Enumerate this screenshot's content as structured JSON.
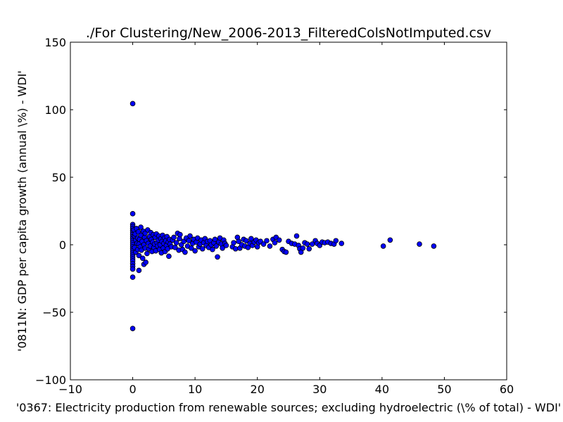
{
  "chart_data": {
    "type": "scatter",
    "title": "./For Clustering/New_2006-2013_FilteredColsNotImputed.csv",
    "xlabel": "'0367: Electricity production from renewable sources; excluding hydroelectric  (\\% of total) - WDI'",
    "ylabel": "'0811N: GDP per capita growth  (annual \\%) - WDI'",
    "xlim": [
      -10,
      60
    ],
    "ylim": [
      -100,
      150
    ],
    "xticks": [
      -10,
      0,
      10,
      20,
      30,
      40,
      50,
      60
    ],
    "yticks": [
      -100,
      -50,
      0,
      50,
      100,
      150
    ],
    "xtick_labels": [
      "−10",
      "0",
      "10",
      "20",
      "30",
      "40",
      "50",
      "60"
    ],
    "ytick_labels": [
      "−100",
      "−50",
      "0",
      "50",
      "100",
      "150"
    ],
    "grid": false,
    "marker_color": "#0000ff",
    "series": [
      {
        "points": [
          [
            0.0,
            104.5
          ],
          [
            0.0,
            23.0
          ],
          [
            0.0,
            15.0
          ],
          [
            0.0,
            13.5
          ],
          [
            0.0,
            12.0
          ],
          [
            0.0,
            10.5
          ],
          [
            0.0,
            9.0
          ],
          [
            0.0,
            7.5
          ],
          [
            0.0,
            6.0
          ],
          [
            0.0,
            4.5
          ],
          [
            0.0,
            3.0
          ],
          [
            0.0,
            1.5
          ],
          [
            0.0,
            0.0
          ],
          [
            0.0,
            -1.5
          ],
          [
            0.0,
            -3.0
          ],
          [
            0.0,
            -4.5
          ],
          [
            0.0,
            -6.0
          ],
          [
            0.0,
            -7.5
          ],
          [
            0.0,
            -9.0
          ],
          [
            0.0,
            -10.5
          ],
          [
            0.0,
            -12.0
          ],
          [
            0.0,
            -14.0
          ],
          [
            0.0,
            -16.0
          ],
          [
            0.0,
            -18.0
          ],
          [
            0.0,
            -24.0
          ],
          [
            0.0,
            -62.0
          ],
          [
            0.2,
            11.0
          ],
          [
            0.3,
            6.5
          ],
          [
            0.3,
            -2.0
          ],
          [
            0.4,
            8.0
          ],
          [
            0.5,
            3.5
          ],
          [
            0.5,
            -5.5
          ],
          [
            0.6,
            12.0
          ],
          [
            0.7,
            1.0
          ],
          [
            0.8,
            -3.5
          ],
          [
            0.8,
            5.0
          ],
          [
            0.9,
            9.5
          ],
          [
            1.0,
            0.5
          ],
          [
            1.0,
            -8.0
          ],
          [
            1.0,
            -19.0
          ],
          [
            1.1,
            4.0
          ],
          [
            1.2,
            -1.5
          ],
          [
            1.3,
            7.0
          ],
          [
            1.3,
            13.0
          ],
          [
            1.4,
            -4.0
          ],
          [
            1.5,
            2.5
          ],
          [
            1.6,
            -10.0
          ],
          [
            1.7,
            10.0
          ],
          [
            1.8,
            0.0
          ],
          [
            1.8,
            -14.5
          ],
          [
            1.9,
            5.5
          ],
          [
            2.0,
            -2.5
          ],
          [
            2.0,
            8.5
          ],
          [
            2.1,
            -13.0
          ],
          [
            2.2,
            3.0
          ],
          [
            2.3,
            -6.5
          ],
          [
            2.4,
            11.0
          ],
          [
            2.5,
            1.0
          ],
          [
            2.6,
            -3.0
          ],
          [
            2.7,
            6.0
          ],
          [
            2.8,
            -1.0
          ],
          [
            2.9,
            9.0
          ],
          [
            3.0,
            4.0
          ],
          [
            3.1,
            -5.0
          ],
          [
            3.2,
            2.0
          ],
          [
            3.3,
            7.5
          ],
          [
            3.4,
            -2.0
          ],
          [
            3.5,
            0.5
          ],
          [
            3.6,
            5.5
          ],
          [
            3.7,
            -4.5
          ],
          [
            3.8,
            8.0
          ],
          [
            3.9,
            1.5
          ],
          [
            4.0,
            -1.0
          ],
          [
            4.1,
            3.5
          ],
          [
            4.2,
            6.5
          ],
          [
            4.3,
            -3.5
          ],
          [
            4.4,
            0.0
          ],
          [
            4.5,
            4.5
          ],
          [
            4.6,
            -6.0
          ],
          [
            4.7,
            2.5
          ],
          [
            4.8,
            7.0
          ],
          [
            4.9,
            -2.5
          ],
          [
            5.0,
            1.0
          ],
          [
            5.1,
            5.0
          ],
          [
            5.2,
            -5.0
          ],
          [
            5.3,
            3.0
          ],
          [
            5.4,
            -0.5
          ],
          [
            5.5,
            6.0
          ],
          [
            5.6,
            -3.0
          ],
          [
            5.7,
            2.0
          ],
          [
            5.8,
            -8.5
          ],
          [
            5.9,
            4.0
          ],
          [
            6.0,
            0.5
          ],
          [
            6.2,
            -1.5
          ],
          [
            6.4,
            3.5
          ],
          [
            6.6,
            5.5
          ],
          [
            6.8,
            -2.0
          ],
          [
            7.0,
            1.5
          ],
          [
            7.2,
            8.5
          ],
          [
            7.4,
            -4.0
          ],
          [
            7.5,
            4.5
          ],
          [
            7.6,
            7.5
          ],
          [
            7.8,
            0.0
          ],
          [
            8.0,
            -3.5
          ],
          [
            8.2,
            2.5
          ],
          [
            8.4,
            -5.5
          ],
          [
            8.6,
            5.0
          ],
          [
            8.8,
            -1.0
          ],
          [
            9.0,
            3.0
          ],
          [
            9.2,
            6.5
          ],
          [
            9.4,
            -2.5
          ],
          [
            9.6,
            1.0
          ],
          [
            9.8,
            4.0
          ],
          [
            10.0,
            -4.5
          ],
          [
            10.2,
            2.0
          ],
          [
            10.4,
            5.0
          ],
          [
            10.6,
            -1.5
          ],
          [
            10.8,
            0.5
          ],
          [
            11.0,
            3.5
          ],
          [
            11.2,
            -3.0
          ],
          [
            11.4,
            1.5
          ],
          [
            11.6,
            4.5
          ],
          [
            11.8,
            -0.5
          ],
          [
            12.0,
            2.5
          ],
          [
            12.2,
            -2.0
          ],
          [
            12.4,
            3.0
          ],
          [
            12.6,
            0.0
          ],
          [
            12.8,
            -3.5
          ],
          [
            13.0,
            1.5
          ],
          [
            13.2,
            4.0
          ],
          [
            13.4,
            -1.0
          ],
          [
            13.6,
            -9.0
          ],
          [
            13.8,
            2.0
          ],
          [
            14.0,
            5.0
          ],
          [
            14.2,
            0.5
          ],
          [
            14.4,
            -2.5
          ],
          [
            14.6,
            3.5
          ],
          [
            14.8,
            1.0
          ],
          [
            15.0,
            -0.5
          ],
          [
            16.0,
            -1.5
          ],
          [
            16.2,
            1.5
          ],
          [
            16.5,
            -3.0
          ],
          [
            16.8,
            5.5
          ],
          [
            17.0,
            2.5
          ],
          [
            17.2,
            -2.5
          ],
          [
            17.5,
            0.0
          ],
          [
            17.8,
            4.0
          ],
          [
            18.0,
            -1.0
          ],
          [
            18.2,
            3.0
          ],
          [
            18.5,
            -2.0
          ],
          [
            18.8,
            1.0
          ],
          [
            19.0,
            4.5
          ],
          [
            19.2,
            -0.5
          ],
          [
            19.5,
            2.0
          ],
          [
            19.8,
            3.5
          ],
          [
            20.0,
            -1.5
          ],
          [
            20.2,
            1.5
          ],
          [
            20.5,
            2.5
          ],
          [
            21.0,
            0.5
          ],
          [
            21.5,
            3.0
          ],
          [
            22.0,
            -1.0
          ],
          [
            22.5,
            4.0
          ],
          [
            22.8,
            1.5
          ],
          [
            23.0,
            5.5
          ],
          [
            23.5,
            3.5
          ],
          [
            24.0,
            -3.5
          ],
          [
            24.3,
            -5.0
          ],
          [
            24.6,
            -5.5
          ],
          [
            25.0,
            2.5
          ],
          [
            25.5,
            1.0
          ],
          [
            26.0,
            0.5
          ],
          [
            26.3,
            6.5
          ],
          [
            26.6,
            -0.5
          ],
          [
            26.8,
            -3.0
          ],
          [
            27.0,
            -5.5
          ],
          [
            27.3,
            -2.5
          ],
          [
            27.6,
            1.5
          ],
          [
            28.0,
            0.5
          ],
          [
            28.3,
            -3.0
          ],
          [
            28.8,
            0.5
          ],
          [
            29.3,
            3.0
          ],
          [
            29.6,
            1.0
          ],
          [
            30.0,
            -0.5
          ],
          [
            30.4,
            2.0
          ],
          [
            30.8,
            1.5
          ],
          [
            31.3,
            2.0
          ],
          [
            31.8,
            1.0
          ],
          [
            32.3,
            0.5
          ],
          [
            32.6,
            3.0
          ],
          [
            33.5,
            1.0
          ],
          [
            40.2,
            -1.0
          ],
          [
            41.3,
            3.5
          ],
          [
            46.0,
            0.5
          ],
          [
            48.3,
            -1.0
          ]
        ]
      }
    ]
  }
}
